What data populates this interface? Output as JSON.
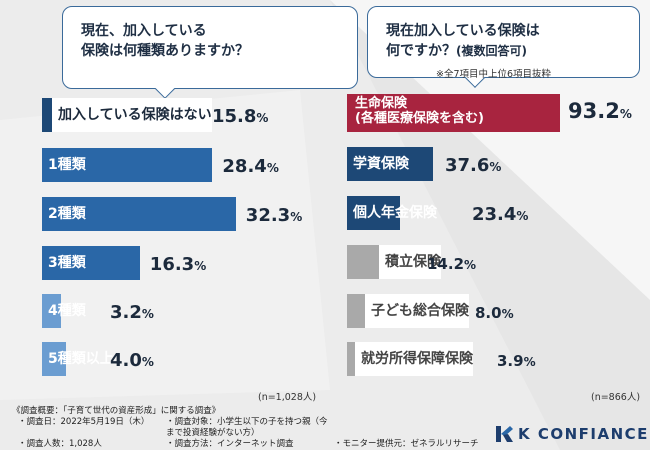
{
  "left_question": {
    "line1": "現在、加入している",
    "line2": "保険は何種類ありますか？"
  },
  "right_question": {
    "line1": "現在加入している保険は",
    "line2": "何ですか？",
    "line2_sub": "(複数回答可)"
  },
  "right_note": "※全7項目中上位6項目抜粋",
  "left_n": "(n=1,028人)",
  "right_n": "(n=866人)",
  "pct_symbol": "%",
  "colors": {
    "dark_blue": "#1d4876",
    "mid_blue": "#2a67a7",
    "light_blue": "#6b9dd1",
    "crimson": "#a8243f",
    "gray": "#a9a9a9",
    "background": "#ececec"
  },
  "chart_data": [
    {
      "type": "bar",
      "orientation": "horizontal",
      "title": "現在、加入している保険は何種類ありますか？",
      "categories": [
        "加入している保険はない",
        "1種類",
        "2種類",
        "3種類",
        "4種類",
        "5種類以上"
      ],
      "values": [
        15.8,
        28.4,
        32.3,
        16.3,
        3.2,
        4.0
      ],
      "value_labels": [
        "15.8",
        "28.4",
        "32.3",
        "16.3",
        "3.2",
        "4.0"
      ],
      "unit": "%",
      "n": "n=1,028人"
    },
    {
      "type": "bar",
      "orientation": "horizontal",
      "title": "現在加入している保険は何ですか？(複数回答可)",
      "categories": [
        "生命保険(各種医療保険を含む)",
        "学資保険",
        "個人年金保険",
        "積立保険",
        "子ども総合保険",
        "就労所得保障保険"
      ],
      "category_lines": [
        [
          "生命保険",
          "(各種医療保険を含む)"
        ],
        [
          "学資保険"
        ],
        [
          "個人年金保険"
        ],
        [
          "積立保険"
        ],
        [
          "子ども総合保険"
        ],
        [
          "就労所得保障保険"
        ]
      ],
      "values": [
        93.2,
        37.6,
        23.4,
        14.2,
        8.0,
        3.9
      ],
      "value_labels": [
        "93.2",
        "37.6",
        "23.4",
        "14.2",
        "8.0",
        "3.9"
      ],
      "unit": "%",
      "n": "n=866人"
    }
  ],
  "footer": {
    "title": "《調査概要：「子育て世代の資産形成」に関する調査》",
    "items": [
      "・調査日：2022年5月19日（木）",
      "・調査対象：小学生以下の子を持つ親（今まで投資経験がない方）",
      "",
      "・調査人数：1,028人",
      "・調査方法：インターネット調査",
      "・モニター提供元：ゼネラルリサーチ"
    ]
  },
  "logo": {
    "text": "K CONFIANCE",
    "icon": "k-confiance-logo-icon"
  }
}
